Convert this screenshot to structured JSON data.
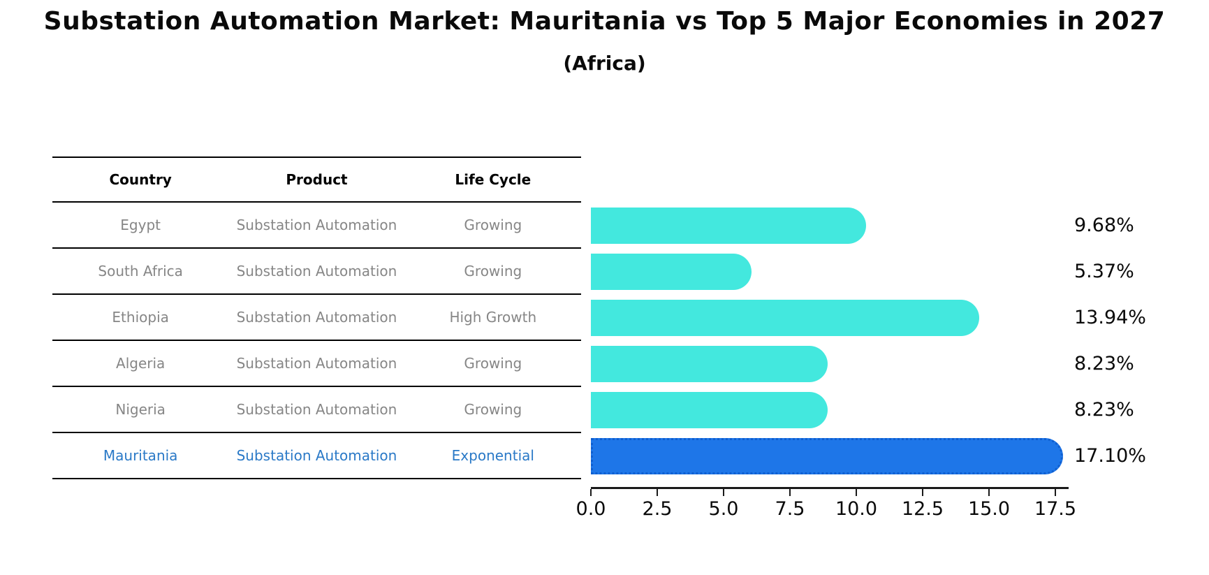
{
  "title": "Substation Automation Market: Mauritania vs Top 5 Major Economies in 2027",
  "subtitle": "(Africa)",
  "table": {
    "headers": [
      "Country",
      "Product",
      "Life Cycle"
    ],
    "rows": [
      {
        "country": "Egypt",
        "product": "Substation Automation",
        "life_cycle": "Growing",
        "highlight": false
      },
      {
        "country": "South Africa",
        "product": "Substation Automation",
        "life_cycle": "Growing",
        "highlight": false
      },
      {
        "country": "Ethiopia",
        "product": "Substation Automation",
        "life_cycle": "High Growth",
        "highlight": false
      },
      {
        "country": "Algeria",
        "product": "Substation Automation",
        "life_cycle": "Growing",
        "highlight": false
      },
      {
        "country": "Nigeria",
        "product": "Substation Automation",
        "life_cycle": "Growing",
        "highlight": false
      },
      {
        "country": "Mauritania",
        "product": "Substation Automation",
        "life_cycle": "Exponential",
        "highlight": true
      }
    ]
  },
  "chart_data": {
    "type": "bar",
    "orientation": "horizontal",
    "title": "Substation Automation Market: Mauritania vs Top 5 Major Economies in 2027 (Africa)",
    "categories": [
      "Egypt",
      "South Africa",
      "Ethiopia",
      "Algeria",
      "Nigeria",
      "Mauritania"
    ],
    "values": [
      9.68,
      5.37,
      13.94,
      8.23,
      8.23,
      17.1
    ],
    "value_labels": [
      "9.68%",
      "5.37%",
      "13.94%",
      "8.23%",
      "8.23%",
      "17.10%"
    ],
    "xlabel": "",
    "ylabel": "",
    "xlim": [
      0,
      17.955
    ],
    "x_ticks": [
      "0.0",
      "2.5",
      "5.0",
      "7.5",
      "10.0",
      "12.5",
      "15.0",
      "17.5"
    ],
    "x_tick_values": [
      0,
      2.5,
      5,
      7.5,
      10,
      12.5,
      15,
      17.5
    ],
    "grid": false,
    "legend": false,
    "colors": {
      "bar_default": "#43e8de",
      "bar_highlight": "#1e76e8",
      "highlight_border": "#0f5fd0",
      "highlight_text": "#2a79c7",
      "text": "#0a0a0a",
      "muted_text": "#868686"
    }
  }
}
